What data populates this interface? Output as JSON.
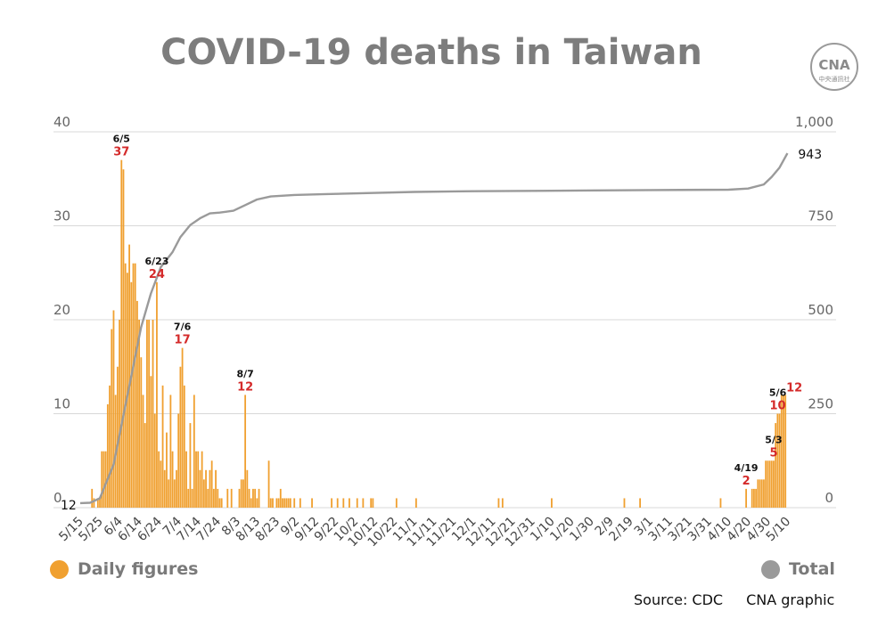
{
  "title": "COVID-19 deaths in Taiwan",
  "logo": {
    "text": "CNA",
    "subtext": "中央通訊社"
  },
  "legend": {
    "daily": "Daily figures",
    "total": "Total"
  },
  "footer": {
    "source": "Source: CDC",
    "credit": "CNA graphic"
  },
  "colors": {
    "daily": "#f0a030",
    "total": "#9a9a9a",
    "highlight": "#d42a2a",
    "grid": "#d8d8d8",
    "axis_text": "#666666"
  },
  "chart_data": {
    "type": "bar",
    "title": "COVID-19 deaths in Taiwan",
    "ylim_left": [
      0,
      40
    ],
    "ylim_right": [
      0,
      1000
    ],
    "yticks_left": [
      "0",
      "10",
      "20",
      "30",
      "40"
    ],
    "yticks_right": [
      "0",
      "250",
      "500",
      "750",
      "1,000"
    ],
    "x_range": [
      "2021-05-15",
      "2022-05-13"
    ],
    "xtick_labels": [
      "5/15",
      "5/25",
      "6/4",
      "6/14",
      "6/24",
      "7/4",
      "7/14",
      "7/24",
      "8/3",
      "8/13",
      "8/23",
      "9/2",
      "9/12",
      "9/22",
      "10/2",
      "10/12",
      "10/22",
      "11/1",
      "11/11",
      "11/21",
      "12/1",
      "12/11",
      "12/21",
      "12/31",
      "1/10",
      "1/20",
      "1/30",
      "2/9",
      "2/19",
      "3/1",
      "3/11",
      "3/21",
      "3/31",
      "4/10",
      "4/20",
      "4/30",
      "5/10"
    ],
    "start_label": "12",
    "series": [
      {
        "name": "Daily figures",
        "axis": "left",
        "type": "bar",
        "points": [
          [
            "2021-05-15",
            0
          ],
          [
            "2021-05-16",
            0
          ],
          [
            "2021-05-17",
            0
          ],
          [
            "2021-05-18",
            0
          ],
          [
            "2021-05-19",
            0
          ],
          [
            "2021-05-20",
            0
          ],
          [
            "2021-05-21",
            2
          ],
          [
            "2021-05-22",
            1
          ],
          [
            "2021-05-23",
            0
          ],
          [
            "2021-05-24",
            1
          ],
          [
            "2021-05-25",
            1
          ],
          [
            "2021-05-26",
            6
          ],
          [
            "2021-05-27",
            6
          ],
          [
            "2021-05-28",
            6
          ],
          [
            "2021-05-29",
            11
          ],
          [
            "2021-05-30",
            13
          ],
          [
            "2021-05-31",
            19
          ],
          [
            "2021-06-01",
            21
          ],
          [
            "2021-06-02",
            12
          ],
          [
            "2021-06-03",
            15
          ],
          [
            "2021-06-04",
            20
          ],
          [
            "2021-06-05",
            37
          ],
          [
            "2021-06-06",
            36
          ],
          [
            "2021-06-07",
            26
          ],
          [
            "2021-06-08",
            25
          ],
          [
            "2021-06-09",
            28
          ],
          [
            "2021-06-10",
            24
          ],
          [
            "2021-06-11",
            26
          ],
          [
            "2021-06-12",
            26
          ],
          [
            "2021-06-13",
            22
          ],
          [
            "2021-06-14",
            20
          ],
          [
            "2021-06-15",
            16
          ],
          [
            "2021-06-16",
            12
          ],
          [
            "2021-06-17",
            9
          ],
          [
            "2021-06-18",
            20
          ],
          [
            "2021-06-19",
            20
          ],
          [
            "2021-06-20",
            14
          ],
          [
            "2021-06-21",
            20
          ],
          [
            "2021-06-22",
            10
          ],
          [
            "2021-06-23",
            24
          ],
          [
            "2021-06-24",
            6
          ],
          [
            "2021-06-25",
            5
          ],
          [
            "2021-06-26",
            13
          ],
          [
            "2021-06-27",
            4
          ],
          [
            "2021-06-28",
            8
          ],
          [
            "2021-06-29",
            3
          ],
          [
            "2021-06-30",
            12
          ],
          [
            "2021-07-01",
            6
          ],
          [
            "2021-07-02",
            3
          ],
          [
            "2021-07-03",
            4
          ],
          [
            "2021-07-04",
            10
          ],
          [
            "2021-07-05",
            15
          ],
          [
            "2021-07-06",
            17
          ],
          [
            "2021-07-07",
            13
          ],
          [
            "2021-07-08",
            6
          ],
          [
            "2021-07-09",
            2
          ],
          [
            "2021-07-10",
            9
          ],
          [
            "2021-07-11",
            2
          ],
          [
            "2021-07-12",
            12
          ],
          [
            "2021-07-13",
            6
          ],
          [
            "2021-07-14",
            6
          ],
          [
            "2021-07-15",
            4
          ],
          [
            "2021-07-16",
            6
          ],
          [
            "2021-07-17",
            3
          ],
          [
            "2021-07-18",
            4
          ],
          [
            "2021-07-19",
            2
          ],
          [
            "2021-07-20",
            4
          ],
          [
            "2021-07-21",
            5
          ],
          [
            "2021-07-22",
            2
          ],
          [
            "2021-07-23",
            4
          ],
          [
            "2021-07-24",
            2
          ],
          [
            "2021-07-25",
            1
          ],
          [
            "2021-07-26",
            1
          ],
          [
            "2021-07-27",
            0
          ],
          [
            "2021-07-28",
            0
          ],
          [
            "2021-07-29",
            2
          ],
          [
            "2021-07-30",
            0
          ],
          [
            "2021-07-31",
            2
          ],
          [
            "2021-08-01",
            0
          ],
          [
            "2021-08-02",
            0
          ],
          [
            "2021-08-03",
            0
          ],
          [
            "2021-08-04",
            2
          ],
          [
            "2021-08-05",
            3
          ],
          [
            "2021-08-06",
            3
          ],
          [
            "2021-08-07",
            12
          ],
          [
            "2021-08-08",
            4
          ],
          [
            "2021-08-09",
            2
          ],
          [
            "2021-08-10",
            1
          ],
          [
            "2021-08-11",
            2
          ],
          [
            "2021-08-12",
            2
          ],
          [
            "2021-08-13",
            1
          ],
          [
            "2021-08-14",
            2
          ],
          [
            "2021-08-15",
            0
          ],
          [
            "2021-08-16",
            0
          ],
          [
            "2021-08-17",
            0
          ],
          [
            "2021-08-18",
            0
          ],
          [
            "2021-08-19",
            5
          ],
          [
            "2021-08-20",
            1
          ],
          [
            "2021-08-21",
            1
          ],
          [
            "2021-08-22",
            0
          ],
          [
            "2021-08-23",
            1
          ],
          [
            "2021-08-24",
            1
          ],
          [
            "2021-08-25",
            2
          ],
          [
            "2021-08-26",
            1
          ],
          [
            "2021-08-27",
            1
          ],
          [
            "2021-08-28",
            1
          ],
          [
            "2021-08-29",
            1
          ],
          [
            "2021-08-30",
            1
          ],
          [
            "2021-09-01",
            1
          ],
          [
            "2021-09-04",
            1
          ],
          [
            "2021-09-10",
            1
          ],
          [
            "2021-09-20",
            1
          ],
          [
            "2021-09-23",
            1
          ],
          [
            "2021-09-26",
            1
          ],
          [
            "2021-09-29",
            1
          ],
          [
            "2021-10-03",
            1
          ],
          [
            "2021-10-06",
            1
          ],
          [
            "2021-10-10",
            1
          ],
          [
            "2021-10-11",
            1
          ],
          [
            "2021-10-23",
            1
          ],
          [
            "2021-11-02",
            1
          ],
          [
            "2021-12-14",
            1
          ],
          [
            "2021-12-16",
            1
          ],
          [
            "2022-01-10",
            1
          ],
          [
            "2022-02-16",
            1
          ],
          [
            "2022-02-24",
            1
          ],
          [
            "2022-04-06",
            1
          ],
          [
            "2022-04-19",
            2
          ],
          [
            "2022-04-22",
            2
          ],
          [
            "2022-04-23",
            2
          ],
          [
            "2022-04-24",
            2
          ],
          [
            "2022-04-25",
            3
          ],
          [
            "2022-04-26",
            3
          ],
          [
            "2022-04-27",
            3
          ],
          [
            "2022-04-28",
            3
          ],
          [
            "2022-04-29",
            5
          ],
          [
            "2022-04-30",
            5
          ],
          [
            "2022-05-01",
            5
          ],
          [
            "2022-05-02",
            5
          ],
          [
            "2022-05-03",
            5
          ],
          [
            "2022-05-04",
            9
          ],
          [
            "2022-05-05",
            10
          ],
          [
            "2022-05-06",
            10
          ],
          [
            "2022-05-07",
            12
          ],
          [
            "2022-05-08",
            12
          ],
          [
            "2022-05-09",
            12
          ]
        ]
      },
      {
        "name": "Total",
        "axis": "right",
        "type": "line",
        "points": [
          [
            "2021-05-15",
            12
          ],
          [
            "2021-05-20",
            13
          ],
          [
            "2021-05-25",
            25
          ],
          [
            "2021-06-01",
            115
          ],
          [
            "2021-06-05",
            220
          ],
          [
            "2021-06-10",
            350
          ],
          [
            "2021-06-15",
            480
          ],
          [
            "2021-06-20",
            570
          ],
          [
            "2021-06-25",
            640
          ],
          [
            "2021-07-01",
            680
          ],
          [
            "2021-07-05",
            720
          ],
          [
            "2021-07-10",
            752
          ],
          [
            "2021-07-15",
            770
          ],
          [
            "2021-07-20",
            783
          ],
          [
            "2021-07-25",
            785
          ],
          [
            "2021-08-01",
            790
          ],
          [
            "2021-08-07",
            805
          ],
          [
            "2021-08-13",
            820
          ],
          [
            "2021-08-20",
            828
          ],
          [
            "2021-09-01",
            832
          ],
          [
            "2021-09-15",
            834
          ],
          [
            "2021-10-01",
            836
          ],
          [
            "2021-11-01",
            840
          ],
          [
            "2021-12-01",
            842
          ],
          [
            "2022-01-01",
            843
          ],
          [
            "2022-02-01",
            844
          ],
          [
            "2022-03-01",
            845
          ],
          [
            "2022-04-10",
            846
          ],
          [
            "2022-04-20",
            849
          ],
          [
            "2022-04-28",
            860
          ],
          [
            "2022-05-02",
            880
          ],
          [
            "2022-05-06",
            905
          ],
          [
            "2022-05-10",
            943
          ]
        ],
        "end_label": "943"
      }
    ],
    "annotations": [
      {
        "date": "6/5",
        "value": "37"
      },
      {
        "date": "6/23",
        "value": "24"
      },
      {
        "date": "7/6",
        "value": "17"
      },
      {
        "date": "8/7",
        "value": "12"
      },
      {
        "date": "4/19",
        "value": "2"
      },
      {
        "date": "5/3",
        "value": "5"
      },
      {
        "date": "5/6",
        "value": "10"
      },
      {
        "date": "",
        "value": "12"
      }
    ]
  }
}
